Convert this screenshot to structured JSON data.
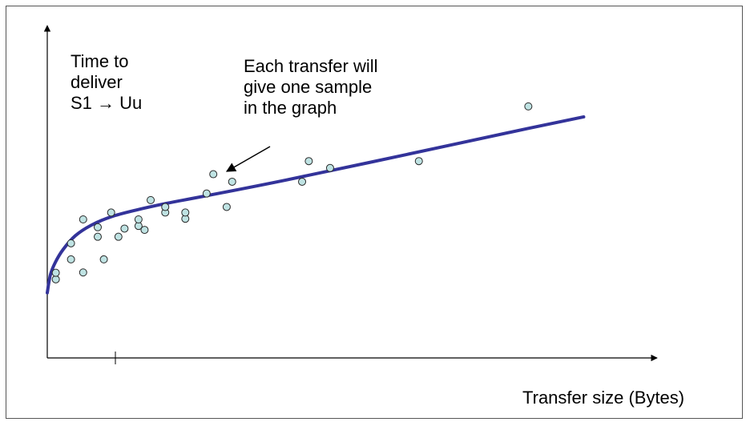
{
  "colors": {
    "frame": "#555555",
    "axis": "#000000",
    "trend_line": "#33339a",
    "point_fill": "#bfe3e3",
    "point_stroke": "#2a2a2a"
  },
  "labels": {
    "y_axis_lines": [
      "Time to",
      "deliver",
      "S1 → Uu"
    ],
    "annotation_lines": [
      "Each transfer will",
      "give one sample",
      "in the graph"
    ],
    "x_axis": "Transfer size (Bytes)"
  },
  "chart_data": {
    "type": "scatter",
    "xlabel": "Transfer size (Bytes)",
    "ylabel": "Time to deliver S1 → Uu",
    "xlim": [
      0,
      1000
    ],
    "ylim": [
      0,
      1000
    ],
    "grid": false,
    "legend": "none",
    "scatter": [
      {
        "x": 14,
        "y": 240
      },
      {
        "x": 14,
        "y": 260
      },
      {
        "x": 39,
        "y": 301
      },
      {
        "x": 39,
        "y": 350
      },
      {
        "x": 59,
        "y": 261
      },
      {
        "x": 59,
        "y": 423
      },
      {
        "x": 83,
        "y": 370
      },
      {
        "x": 83,
        "y": 399
      },
      {
        "x": 93,
        "y": 301
      },
      {
        "x": 105,
        "y": 444
      },
      {
        "x": 117,
        "y": 370
      },
      {
        "x": 127,
        "y": 395
      },
      {
        "x": 150,
        "y": 403
      },
      {
        "x": 150,
        "y": 423
      },
      {
        "x": 160,
        "y": 391
      },
      {
        "x": 170,
        "y": 482
      },
      {
        "x": 194,
        "y": 444
      },
      {
        "x": 194,
        "y": 461
      },
      {
        "x": 227,
        "y": 425
      },
      {
        "x": 227,
        "y": 444
      },
      {
        "x": 262,
        "y": 502
      },
      {
        "x": 273,
        "y": 561
      },
      {
        "x": 295,
        "y": 461
      },
      {
        "x": 304,
        "y": 538
      },
      {
        "x": 419,
        "y": 538
      },
      {
        "x": 430,
        "y": 601
      },
      {
        "x": 465,
        "y": 580
      },
      {
        "x": 611,
        "y": 601
      },
      {
        "x": 791,
        "y": 768
      }
    ],
    "trend_line": [
      {
        "x": 0,
        "y": 199
      },
      {
        "x": 5,
        "y": 253
      },
      {
        "x": 13,
        "y": 291
      },
      {
        "x": 26,
        "y": 331
      },
      {
        "x": 46,
        "y": 373
      },
      {
        "x": 72,
        "y": 405
      },
      {
        "x": 105,
        "y": 431
      },
      {
        "x": 145,
        "y": 451
      },
      {
        "x": 196,
        "y": 472
      },
      {
        "x": 261,
        "y": 495
      },
      {
        "x": 392,
        "y": 543
      },
      {
        "x": 588,
        "y": 620
      },
      {
        "x": 791,
        "y": 701
      },
      {
        "x": 882,
        "y": 736
      }
    ],
    "x_tick_marks": [
      112
    ]
  }
}
